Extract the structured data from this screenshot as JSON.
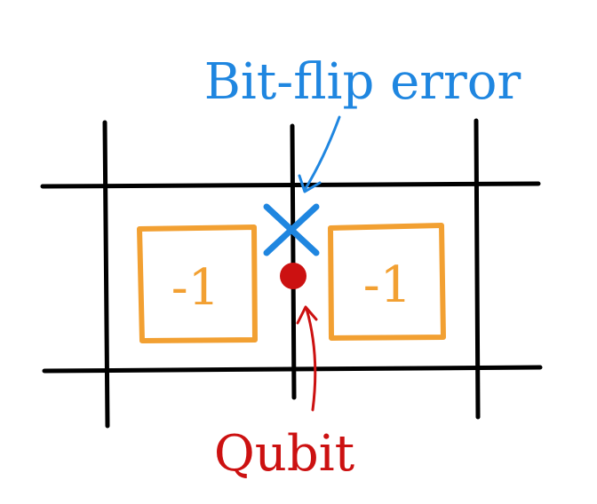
{
  "labels": {
    "error_label": "Bit-flip error",
    "qubit_label": "Qubit"
  },
  "plaquettes": {
    "left_value": "-1",
    "right_value": "-1"
  },
  "colors": {
    "grid": "#000000",
    "error": "#1f86e0",
    "qubit": "#cc1111",
    "plaquette": "#f2a032"
  },
  "icons": {
    "error_marker": "x-mark-icon",
    "qubit_marker": "dot-icon"
  }
}
